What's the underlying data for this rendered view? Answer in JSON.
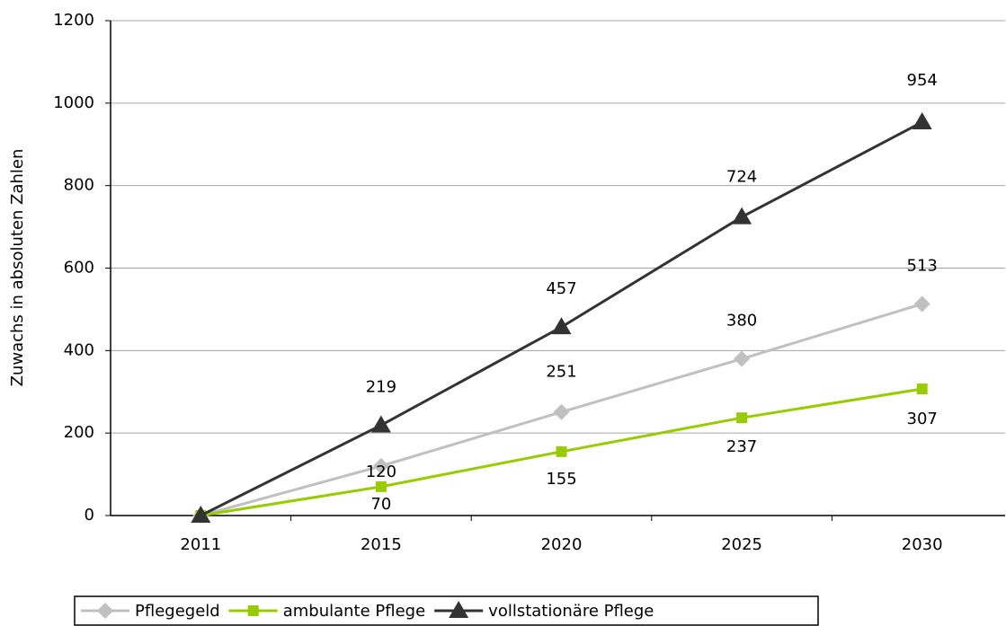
{
  "chart_data": {
    "type": "line",
    "y_label": "Zuwachs in absoluten Zahlen",
    "categories": [
      "2011",
      "2015",
      "2020",
      "2025",
      "2030"
    ],
    "series": [
      {
        "name": "Pflegegeld",
        "color": "#c0c0c0",
        "marker": "diamond",
        "values": [
          0,
          120,
          251,
          380,
          513
        ],
        "value_labels": [
          null,
          "120",
          "251",
          "380",
          "513"
        ]
      },
      {
        "name": "ambulante Pflege",
        "color": "#99cc00",
        "marker": "square",
        "values": [
          0,
          70,
          155,
          237,
          307
        ],
        "value_labels": [
          null,
          "70",
          "155",
          "237",
          "307"
        ]
      },
      {
        "name": "vollstationäre Pflege",
        "color": "#333333",
        "marker": "triangle",
        "values": [
          0,
          219,
          457,
          724,
          954
        ],
        "value_labels": [
          null,
          "219",
          "457",
          "724",
          "954"
        ]
      }
    ],
    "ylim": [
      0,
      1200
    ],
    "yticks": [
      0,
      200,
      400,
      600,
      800,
      1000,
      1200
    ],
    "grid": true,
    "legend": "bottom"
  }
}
